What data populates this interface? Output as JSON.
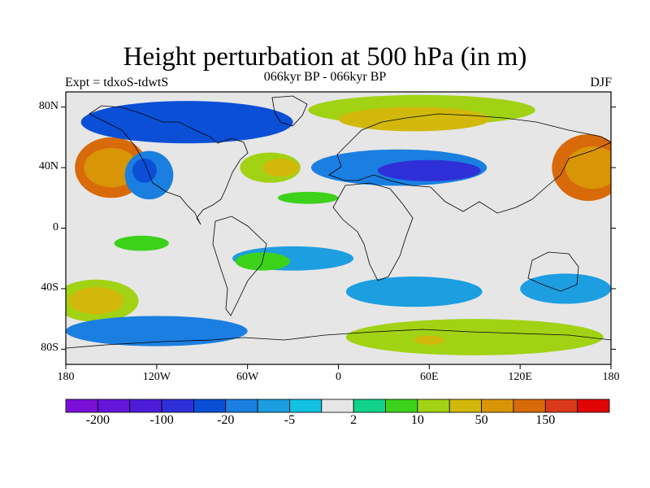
{
  "header": {
    "title": "Height perturbation at 500 hPa (in m)",
    "subtitle": "066kyr BP - 066kyr BP",
    "left_label": "Expt = tdxoS-tdwtS",
    "right_label": "DJF"
  },
  "map": {
    "projection": "cylindrical-equidistant",
    "lon_range": [
      -180,
      180
    ],
    "lat_range": [
      -90,
      90
    ],
    "lat_ticks": [
      {
        "value": 80,
        "label": "80N"
      },
      {
        "value": 40,
        "label": "40N"
      },
      {
        "value": 0,
        "label": "0"
      },
      {
        "value": -40,
        "label": "40S"
      },
      {
        "value": -80,
        "label": "80S"
      }
    ],
    "lon_ticks": [
      {
        "value": -180,
        "label": "180"
      },
      {
        "value": -120,
        "label": "120W"
      },
      {
        "value": -60,
        "label": "60W"
      },
      {
        "value": 0,
        "label": "0"
      },
      {
        "value": 60,
        "label": "60E"
      },
      {
        "value": 120,
        "label": "120E"
      },
      {
        "value": 180,
        "label": "180"
      }
    ],
    "background_color": "#e6e6e6",
    "anomalies": [
      {
        "lon": -150,
        "lat": 40,
        "level": 6,
        "rx": 24,
        "ry": 20
      },
      {
        "lon": -150,
        "lat": 40,
        "level": 5,
        "rx": 18,
        "ry": 13
      },
      {
        "lon": 165,
        "lat": 40,
        "level": 6,
        "rx": 24,
        "ry": 22
      },
      {
        "lon": 168,
        "lat": 40,
        "level": 5,
        "rx": 18,
        "ry": 14
      },
      {
        "lon": 55,
        "lat": 78,
        "level": 3,
        "rx": 75,
        "ry": 10
      },
      {
        "lon": 50,
        "lat": 72,
        "level": 4,
        "rx": 50,
        "ry": 8
      },
      {
        "lon": 40,
        "lat": 40,
        "level": -3,
        "rx": 58,
        "ry": 12
      },
      {
        "lon": 60,
        "lat": 38,
        "level": -5,
        "rx": 34,
        "ry": 7
      },
      {
        "lon": -125,
        "lat": 35,
        "level": -3,
        "rx": 16,
        "ry": 16
      },
      {
        "lon": -128,
        "lat": 38,
        "level": -4,
        "rx": 8,
        "ry": 8
      },
      {
        "lon": -45,
        "lat": 40,
        "level": 3,
        "rx": 20,
        "ry": 10
      },
      {
        "lon": -38,
        "lat": 40,
        "level": 4,
        "rx": 12,
        "ry": 6
      },
      {
        "lon": -100,
        "lat": 70,
        "level": -4,
        "rx": 70,
        "ry": 14
      },
      {
        "lon": -160,
        "lat": -48,
        "level": 3,
        "rx": 28,
        "ry": 14
      },
      {
        "lon": -160,
        "lat": -48,
        "level": 4,
        "rx": 18,
        "ry": 9
      },
      {
        "lon": -120,
        "lat": -68,
        "level": -3,
        "rx": 60,
        "ry": 10
      },
      {
        "lon": 90,
        "lat": -72,
        "level": 3,
        "rx": 85,
        "ry": 12
      },
      {
        "lon": 60,
        "lat": -74,
        "level": 4,
        "rx": 10,
        "ry": 3
      },
      {
        "lon": -30,
        "lat": -20,
        "level": -2,
        "rx": 40,
        "ry": 8
      },
      {
        "lon": 50,
        "lat": -42,
        "level": -2,
        "rx": 45,
        "ry": 10
      },
      {
        "lon": 150,
        "lat": -40,
        "level": -2,
        "rx": 30,
        "ry": 10
      },
      {
        "lon": -130,
        "lat": -10,
        "level": 2,
        "rx": 18,
        "ry": 5
      },
      {
        "lon": -50,
        "lat": -22,
        "level": 2,
        "rx": 18,
        "ry": 6
      },
      {
        "lon": -20,
        "lat": 20,
        "level": 2,
        "rx": 20,
        "ry": 4
      }
    ]
  },
  "colorbar": {
    "colors": [
      "#7a10d8",
      "#6316d8",
      "#4d1cd8",
      "#2f2fd8",
      "#0a4fd6",
      "#1a7fe0",
      "#1c9ee0",
      "#12c0e0",
      "#e6e6e6",
      "#12d38a",
      "#3cd21a",
      "#a2d214",
      "#d2b80a",
      "#d89506",
      "#d86a0a",
      "#da3a1a",
      "#e00505"
    ],
    "labels": [
      "-200",
      "-100",
      "-20",
      "-5",
      "2",
      "10",
      "50",
      "150"
    ]
  }
}
